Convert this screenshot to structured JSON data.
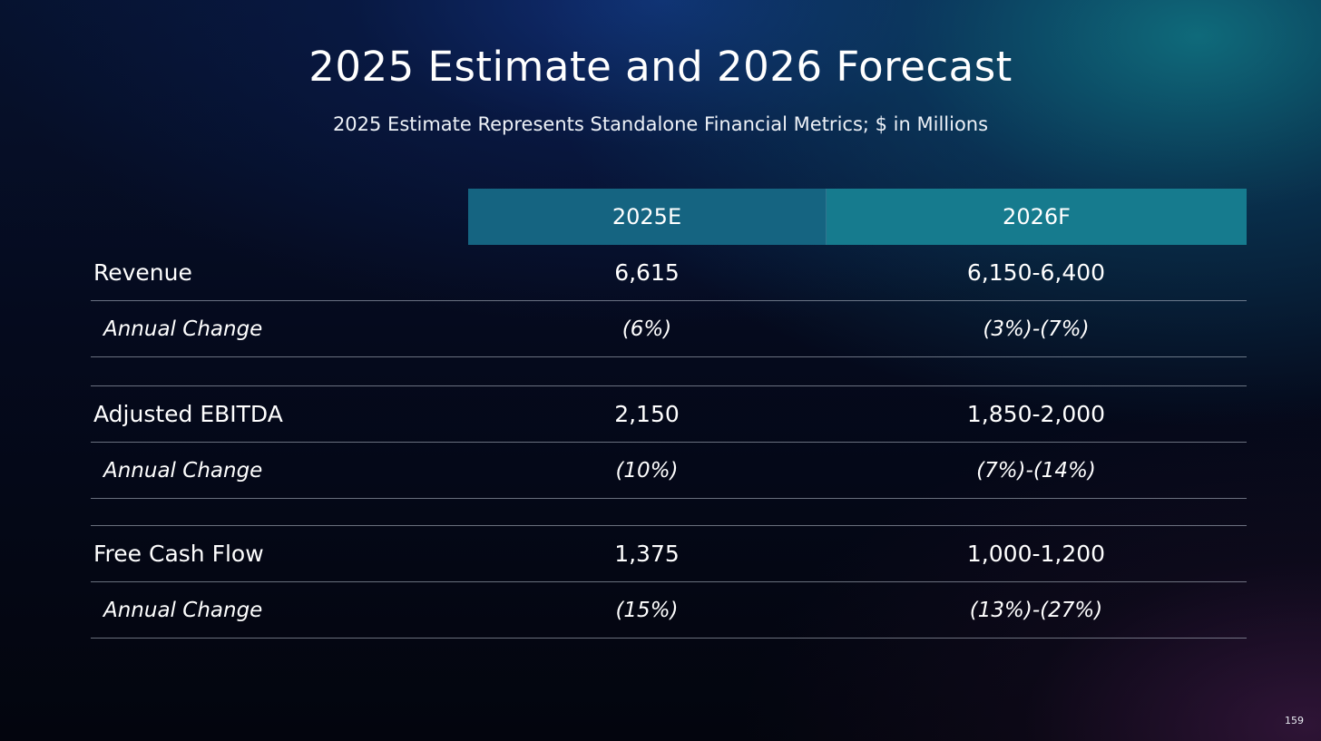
{
  "slide": {
    "title": "2025 Estimate and 2026 Forecast",
    "subtitle": "2025 Estimate Represents Standalone Financial Metrics; $ in Millions",
    "page_number": "159"
  },
  "table": {
    "columns": [
      "2025E",
      "2026F"
    ],
    "groups": [
      {
        "metric": "Revenue",
        "value_2025e": "6,615",
        "value_2026f": "6,150-6,400",
        "change_label": "Annual Change",
        "change_2025e": "(6%)",
        "change_2026f": "(3%)-(7%)"
      },
      {
        "metric": "Adjusted EBITDA",
        "value_2025e": "2,150",
        "value_2026f": "1,850-2,000",
        "change_label": "Annual Change",
        "change_2025e": "(10%)",
        "change_2026f": "(7%)-(14%)"
      },
      {
        "metric": "Free Cash Flow",
        "value_2025e": "1,375",
        "value_2026f": "1,000-1,200",
        "change_label": "Annual Change",
        "change_2025e": "(15%)",
        "change_2026f": "(13%)-(27%)"
      }
    ]
  },
  "colors": {
    "header_col_2025e": "#156481",
    "header_col_2026f": "#167b8e",
    "text": "#ffffff"
  }
}
